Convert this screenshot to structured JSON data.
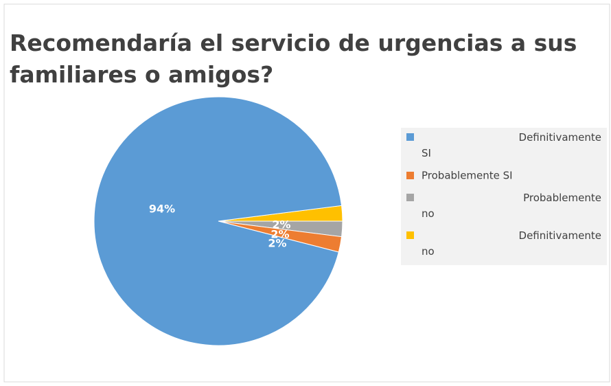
{
  "chart_data": {
    "type": "pie",
    "title": "Recomendaría el servicio de urgencias a sus familiares o amigos?",
    "categories": [
      "Definitivamente SI",
      "Probablemente SI",
      "Probablemente no",
      "Definitivamente no"
    ],
    "values": [
      94,
      2,
      2,
      2
    ],
    "value_labels": [
      "94%",
      "2%",
      "2%",
      "2%"
    ],
    "colors": [
      "#5b9bd5",
      "#ed7d31",
      "#a5a5a5",
      "#ffc000"
    ],
    "legend": "right"
  }
}
